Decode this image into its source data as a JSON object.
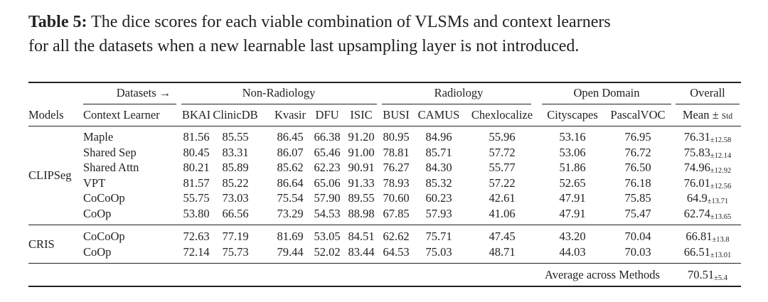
{
  "caption": {
    "label": "Table 5:",
    "line1": "The dice scores for each viable combination of VLSMs and context learners",
    "line2": "for all the datasets when a new learnable last upsampling layer is not introduced."
  },
  "header": {
    "datasets_label": "Datasets →",
    "groups": [
      "Non-Radiology",
      "Radiology",
      "Open Domain",
      "Overall"
    ],
    "columns": [
      "Models",
      "Context Learner",
      "BKAI",
      "ClinicDB",
      "Kvasir",
      "DFU",
      "ISIC",
      "BUSI",
      "CAMUS",
      "Chexlocalize",
      "Cityscapes",
      "PascalVOC"
    ],
    "overall": {
      "main": "Mean ±",
      "small": "Std"
    }
  },
  "groups": [
    {
      "model": "CLIPSeg",
      "rows": [
        {
          "learner": "Maple",
          "values": [
            "81.56",
            "85.55",
            "86.45",
            "66.38",
            "91.20",
            "80.95",
            "84.96",
            "55.96",
            "53.16",
            "76.95"
          ],
          "mean": "76.31",
          "std": "±12.58"
        },
        {
          "learner": "Shared Sep",
          "values": [
            "80.45",
            "83.31",
            "86.07",
            "65.46",
            "91.00",
            "78.81",
            "85.71",
            "57.72",
            "53.06",
            "76.72"
          ],
          "mean": "75.83",
          "std": "±12.14"
        },
        {
          "learner": "Shared Attn",
          "values": [
            "80.21",
            "85.89",
            "85.62",
            "62.23",
            "90.91",
            "76.27",
            "84.30",
            "55.77",
            "51.86",
            "76.50"
          ],
          "mean": "74.96",
          "std": "±12.92"
        },
        {
          "learner": "VPT",
          "values": [
            "81.57",
            "85.22",
            "86.64",
            "65.06",
            "91.33",
            "78.93",
            "85.32",
            "57.22",
            "52.65",
            "76.18"
          ],
          "mean": "76.01",
          "std": "±12.56"
        },
        {
          "learner": "CoCoOp",
          "values": [
            "55.75",
            "73.03",
            "75.54",
            "57.90",
            "89.55",
            "70.60",
            "60.23",
            "42.61",
            "47.91",
            "75.85"
          ],
          "mean": "64.9",
          "std": "±13.71"
        },
        {
          "learner": "CoOp",
          "values": [
            "53.80",
            "66.56",
            "73.29",
            "54.53",
            "88.98",
            "67.85",
            "57.93",
            "41.06",
            "47.91",
            "75.47"
          ],
          "mean": "62.74",
          "std": "±13.65"
        }
      ]
    },
    {
      "model": "CRIS",
      "rows": [
        {
          "learner": "CoCoOp",
          "values": [
            "72.63",
            "77.19",
            "81.69",
            "53.05",
            "84.51",
            "62.62",
            "75.71",
            "47.45",
            "43.20",
            "70.04"
          ],
          "mean": "66.81",
          "std": "±13.8"
        },
        {
          "learner": "CoOp",
          "values": [
            "72.14",
            "75.73",
            "79.44",
            "52.02",
            "83.44",
            "64.53",
            "75.03",
            "48.71",
            "44.03",
            "70.03"
          ],
          "mean": "66.51",
          "std": "±13.01"
        }
      ]
    }
  ],
  "average": {
    "label": "Average across Methods",
    "mean": "70.51",
    "std": "±5.4"
  }
}
